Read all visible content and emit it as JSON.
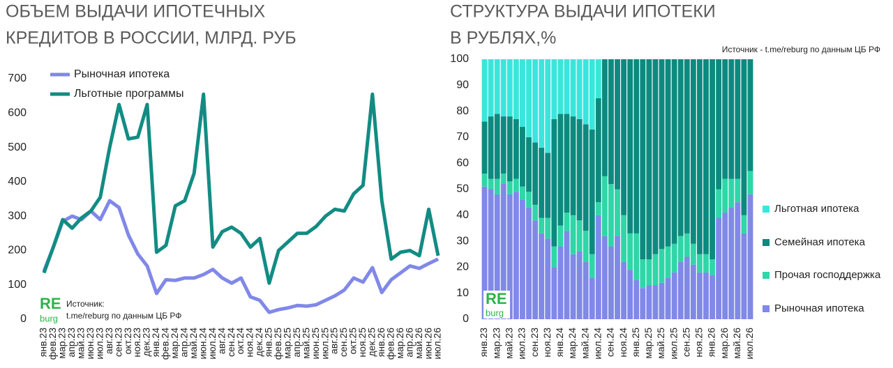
{
  "chart_data": [
    {
      "type": "line",
      "title": [
        "ОБЪЕМ ВЫДАЧИ ИПОТЕЧНЫХ",
        "КРЕДИТОВ В РОССИИ, МЛРД. РУБ"
      ],
      "categories": [
        "янв.23",
        "фев.23",
        "мар.23",
        "апр.23",
        "май.23",
        "июн.23",
        "июл.23",
        "авг.23",
        "сен.23",
        "окт.23",
        "ноя.23",
        "дек.23",
        "янв.24",
        "фев.24",
        "мар.24",
        "апр.24",
        "май.24",
        "июн.24",
        "июл.24",
        "авг.24",
        "сен.24",
        "окт.24",
        "ноя.24",
        "дек.24",
        "янв.25",
        "фев.25",
        "мар.25",
        "апр.25",
        "май.25",
        "июн.25",
        "июл.25",
        "авг.25",
        "сен.25",
        "окт.25",
        "ноя.25",
        "дек.25",
        "янв.26",
        "фев.26",
        "мар.26",
        "апр.26",
        "май.26",
        "июн.26",
        "июл.26"
      ],
      "series": [
        {
          "name": "Рыночная ипотека",
          "color": "#8088e8",
          "values": [
            140,
            210,
            285,
            300,
            290,
            315,
            290,
            345,
            325,
            245,
            190,
            155,
            75,
            115,
            113,
            120,
            120,
            130,
            145,
            120,
            105,
            120,
            65,
            55,
            20,
            28,
            33,
            40,
            38,
            42,
            55,
            68,
            85,
            120,
            108,
            150,
            78,
            115,
            135,
            155,
            148,
            162,
            175
          ]
        },
        {
          "name": "Льготные программы",
          "color": "#128c83",
          "values": [
            135,
            210,
            290,
            265,
            295,
            315,
            355,
            500,
            625,
            525,
            530,
            625,
            195,
            215,
            330,
            345,
            425,
            655,
            210,
            255,
            268,
            250,
            210,
            235,
            105,
            200,
            225,
            250,
            250,
            270,
            300,
            320,
            315,
            365,
            390,
            655,
            345,
            175,
            195,
            200,
            185,
            320,
            185
          ]
        }
      ],
      "ylim": [
        0,
        700
      ],
      "yticks": [
        0,
        100,
        200,
        300,
        400,
        500,
        600,
        700
      ],
      "grid": false,
      "legend": "top-left",
      "logo": [
        "RE",
        "burg"
      ],
      "source": [
        "Источник:",
        "t.me/reburg по данным  ЦБ РФ"
      ]
    },
    {
      "type": "bar",
      "stacked": true,
      "title": [
        "СТРУКТУРА ВЫДАЧИ ИПОТЕКИ",
        "В РУБЛЯХ,%"
      ],
      "categories": [
        "янв.23",
        null,
        "мар.23",
        null,
        "май.23",
        null,
        "июл.23",
        null,
        "сен.23",
        null,
        "ноя.23",
        null,
        "янв.24",
        null,
        "мар.24",
        null,
        "май.24",
        null,
        "июл.24",
        null,
        "сен.24",
        null,
        "ноя.24",
        null,
        "янв.25",
        null,
        "мар.25",
        null,
        "май.25",
        null,
        "июл.25",
        null,
        "сен.25",
        null,
        "ноя.25",
        null,
        "янв.26",
        null,
        "мар.26",
        null,
        "май.26",
        null,
        "июл.26"
      ],
      "series": [
        {
          "name": "Рыночная ипотека",
          "color": "#8088e8",
          "values": [
            51,
            50,
            48,
            52,
            48,
            49,
            46,
            43,
            38,
            33,
            31,
            20,
            28,
            34,
            25,
            26,
            22,
            16,
            40,
            32,
            28,
            32,
            22,
            19,
            15,
            12,
            13,
            13,
            14,
            16,
            18,
            22,
            24,
            21,
            18,
            18,
            17,
            39,
            41,
            43,
            45,
            33,
            48
          ]
        },
        {
          "name": "Прочая господдержка",
          "color": "#2fd6a8",
          "values": [
            5,
            4,
            6,
            4,
            5,
            5,
            5,
            6,
            6,
            6,
            8,
            8,
            8,
            7,
            15,
            12,
            12,
            9,
            5,
            23,
            24,
            18,
            18,
            14,
            18,
            11,
            10,
            12,
            13,
            12,
            11,
            10,
            9,
            8,
            7,
            7,
            6,
            11,
            13,
            11,
            9,
            7,
            9
          ]
        },
        {
          "name": "Семейная ипотека",
          "color": "#0d8a7f",
          "values": [
            20,
            24,
            25,
            22,
            25,
            23,
            23,
            21,
            24,
            27,
            25,
            49,
            43,
            38,
            38,
            39,
            41,
            48,
            40,
            45,
            48,
            50,
            60,
            67,
            67,
            77,
            77,
            75,
            73,
            72,
            71,
            68,
            67,
            71,
            75,
            75,
            77,
            50,
            46,
            46,
            46,
            60,
            43
          ]
        },
        {
          "name": "Льготная ипотека",
          "color": "#3ae6dc",
          "values": [
            24,
            22,
            21,
            22,
            22,
            23,
            26,
            30,
            32,
            34,
            36,
            23,
            21,
            21,
            22,
            23,
            25,
            27,
            15,
            0,
            0,
            0,
            0,
            0,
            0,
            0,
            0,
            0,
            0,
            0,
            0,
            0,
            0,
            0,
            0,
            0,
            0,
            0,
            0,
            0,
            0,
            0,
            0
          ]
        }
      ],
      "ylim": [
        0,
        100
      ],
      "yticks": [
        0,
        10,
        20,
        30,
        40,
        50,
        60,
        70,
        80,
        90,
        100
      ],
      "grid": false,
      "legend": "right",
      "logo": [
        "RE",
        "burg"
      ],
      "source": [
        "Источник  - t.me/reburg по данным  ЦБ РФ"
      ]
    }
  ]
}
